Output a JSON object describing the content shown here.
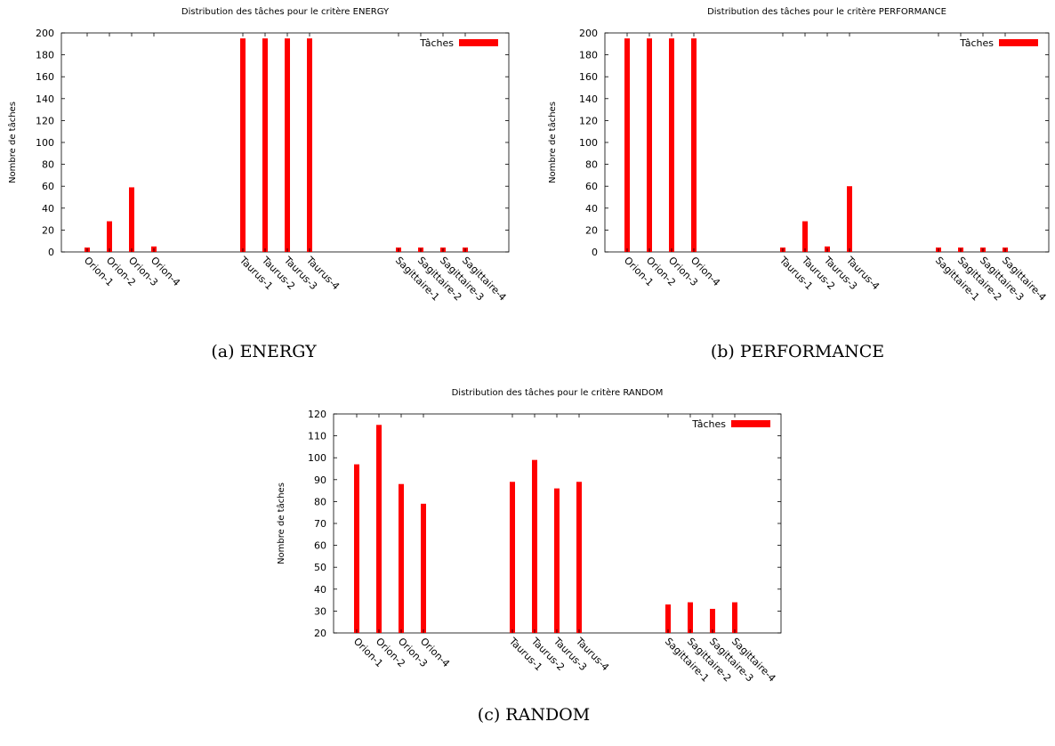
{
  "captions": {
    "a": "(a)  ENERGY",
    "b": "(b)  PERFORMANCE",
    "c": "(c)  RANDOM"
  },
  "colors": {
    "bar": "#ff0000",
    "axis": "#000000"
  },
  "chart_data": [
    {
      "type": "bar",
      "title": "Distribution des tâches pour le critère ENERGY",
      "xlabel": "",
      "ylabel": "Nombre de tâches",
      "ylim": [
        0,
        200
      ],
      "yticks": [
        0,
        20,
        40,
        60,
        80,
        100,
        120,
        140,
        160,
        180,
        200
      ],
      "legend_position": "top-right",
      "grid": false,
      "categories": [
        "Orion-1",
        "Orion-2",
        "Orion-3",
        "Orion-4",
        "Taurus-1",
        "Taurus-2",
        "Taurus-3",
        "Taurus-4",
        "Sagittaire-1",
        "Sagittaire-2",
        "Sagittaire-3",
        "Sagittaire-4"
      ],
      "series": [
        {
          "name": "Tâches",
          "values": [
            4,
            28,
            59,
            5,
            195,
            195,
            195,
            195,
            4,
            4,
            4,
            4
          ]
        }
      ]
    },
    {
      "type": "bar",
      "title": "Distribution des tâches pour le critère PERFORMANCE",
      "xlabel": "",
      "ylabel": "Nombre de tâches",
      "ylim": [
        0,
        200
      ],
      "yticks": [
        0,
        20,
        40,
        60,
        80,
        100,
        120,
        140,
        160,
        180,
        200
      ],
      "legend_position": "top-right",
      "grid": false,
      "categories": [
        "Orion-1",
        "Orion-2",
        "Orion-3",
        "Orion-4",
        "Taurus-1",
        "Taurus-2",
        "Taurus-3",
        "Taurus-4",
        "Sagittaire-1",
        "Sagittaire-2",
        "Sagittaire-3",
        "Sagittaire-4"
      ],
      "series": [
        {
          "name": "Tâches",
          "values": [
            195,
            195,
            195,
            195,
            4,
            28,
            5,
            60,
            4,
            4,
            4,
            4
          ]
        }
      ]
    },
    {
      "type": "bar",
      "title": "Distribution des tâches pour le critère RANDOM",
      "xlabel": "",
      "ylabel": "Nombre de tâches",
      "ylim": [
        20,
        120
      ],
      "yticks": [
        20,
        30,
        40,
        50,
        60,
        70,
        80,
        90,
        100,
        110,
        120
      ],
      "legend_position": "top-right",
      "grid": false,
      "categories": [
        "Orion-1",
        "Orion-2",
        "Orion-3",
        "Orion-4",
        "Taurus-1",
        "Taurus-2",
        "Taurus-3",
        "Taurus-4",
        "Sagittaire-1",
        "Sagittaire-2",
        "Sagittaire-3",
        "Sagittaire-4"
      ],
      "series": [
        {
          "name": "Tâches",
          "values": [
            97,
            115,
            88,
            79,
            89,
            99,
            86,
            89,
            33,
            34,
            31,
            34
          ]
        }
      ]
    }
  ]
}
